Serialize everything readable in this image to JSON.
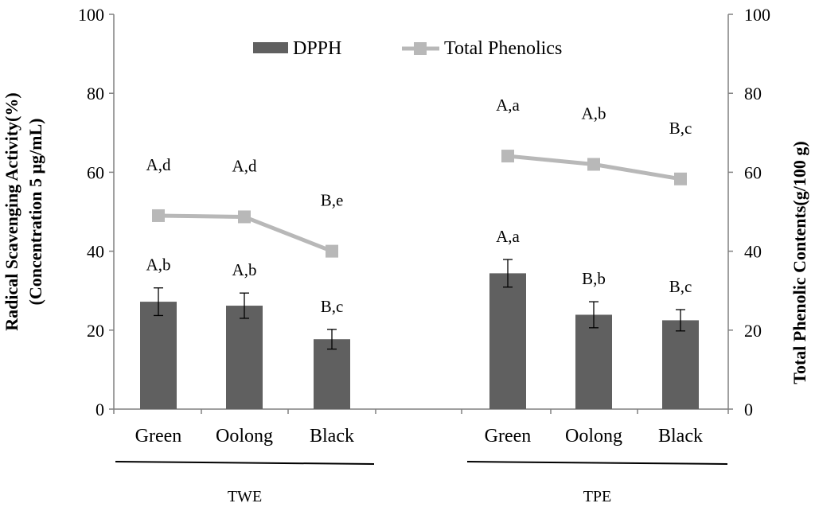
{
  "chart_data": {
    "type": "bar",
    "categories": [
      "Green",
      "Oolong",
      "Black",
      "Green",
      "Oolong",
      "Black"
    ],
    "groups": [
      {
        "label": "TWE",
        "categories": [
          "Green",
          "Oolong",
          "Black"
        ]
      },
      {
        "label": "TPE",
        "categories": [
          "Green",
          "Oolong",
          "Black"
        ]
      }
    ],
    "series": [
      {
        "name": "DPPH",
        "kind": "bar",
        "axis": "left",
        "color": "#606060",
        "values": [
          27.2,
          26.2,
          17.7,
          34.4,
          23.9,
          22.5
        ],
        "errors": [
          3.5,
          3.2,
          2.5,
          3.5,
          3.3,
          2.7
        ],
        "annotations": [
          "A,b",
          "A,b",
          "B,c",
          "A,a",
          "B,b",
          "B,c"
        ]
      },
      {
        "name": "Total Phenolics",
        "kind": "line",
        "axis": "right",
        "color": "#b8b8b8",
        "values": [
          49,
          48.7,
          40,
          64.1,
          62,
          58.3
        ],
        "annotations": [
          "A,d",
          "A,d",
          "B,e",
          "A,a",
          "A,b",
          "B,c"
        ]
      }
    ],
    "ylabel_left": [
      "Radical Scavenging Activity(%)",
      "(Concentration 5 μg/mL)"
    ],
    "ylabel_right": "Total Phenolic Contents(g/100 g)",
    "ylim_left": [
      0,
      100
    ],
    "ylim_right": [
      0,
      100
    ],
    "yticks": [
      "0",
      "20",
      "40",
      "60",
      "80",
      "100"
    ],
    "grid": false,
    "legend_position": "top-center"
  }
}
